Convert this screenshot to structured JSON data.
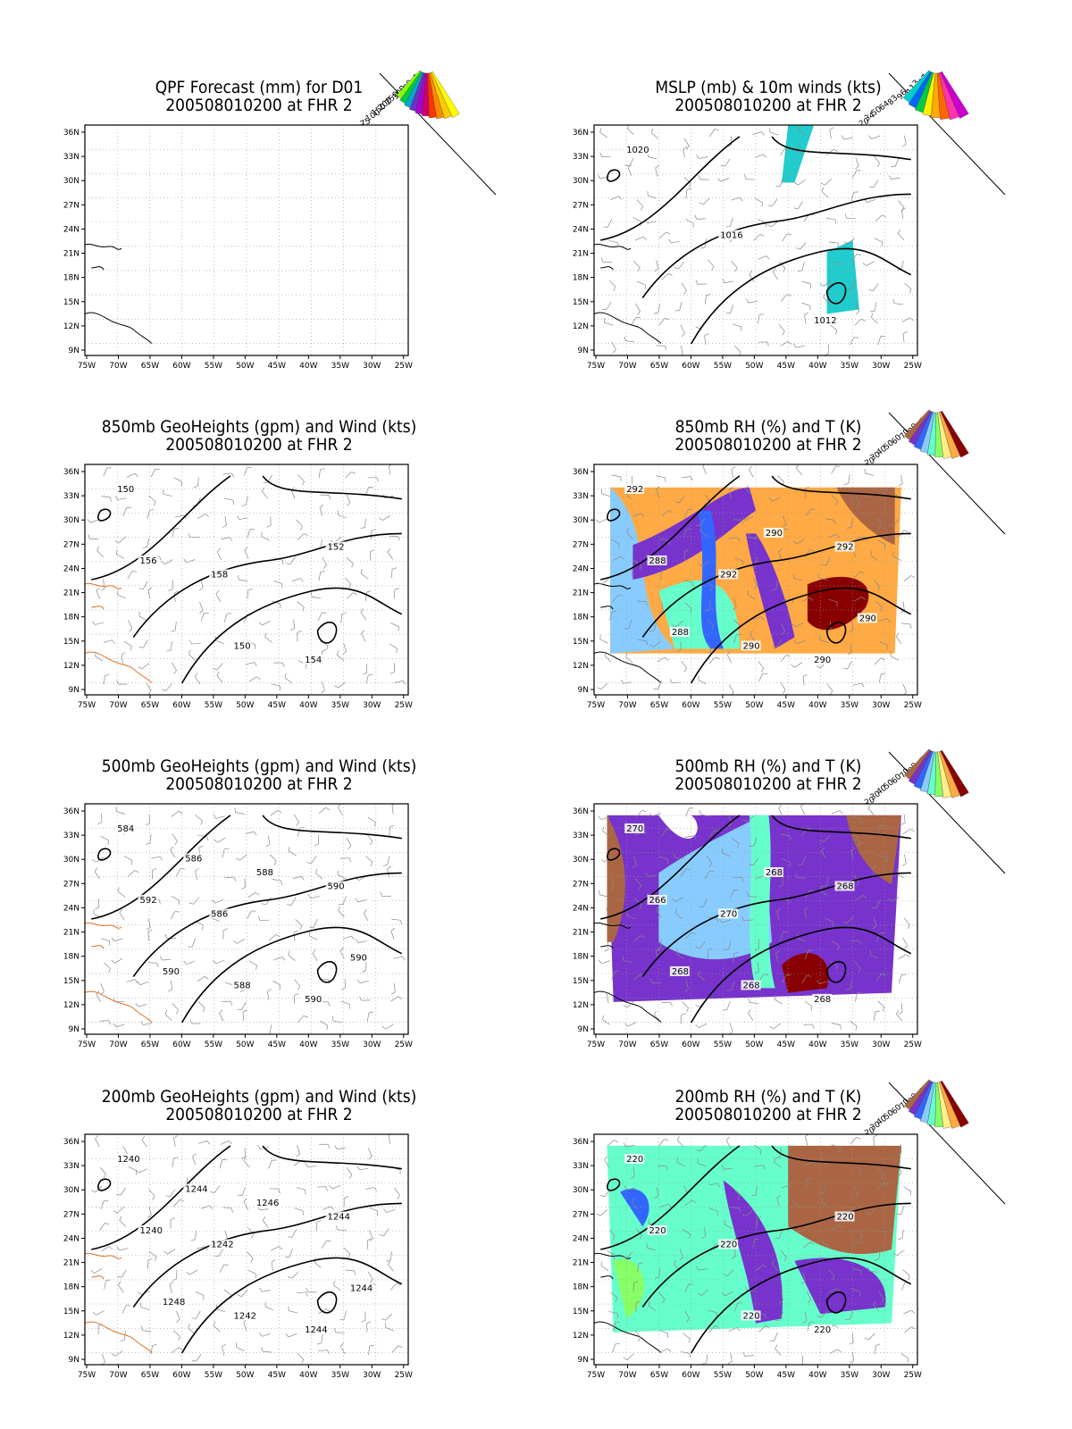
{
  "figure": {
    "x_ticks": [
      "75W",
      "70W",
      "65W",
      "60W",
      "55W",
      "50W",
      "45W",
      "40W",
      "35W",
      "30W",
      "25W"
    ],
    "y_ticks": [
      "36N",
      "33N",
      "30N",
      "27N",
      "24N",
      "21N",
      "18N",
      "15N",
      "12N",
      "9N"
    ]
  },
  "panels": [
    {
      "id": "qpf",
      "title": "QPF Forecast (mm) for D01",
      "subtitle": "200508010200 at FHR 2",
      "field": "none",
      "legend": {
        "labels": [
          "500",
          "400",
          "300",
          "250",
          "200",
          "150",
          "100",
          "75",
          "50",
          "25"
        ],
        "colors": [
          "#ffff00",
          "#ffcc00",
          "#ff8800",
          "#ff3300",
          "#cc0066",
          "#aa00cc",
          "#6633cc",
          "#00aacc",
          "#00cc44",
          "#88ff00"
        ]
      },
      "contour_labels": []
    },
    {
      "id": "mslp",
      "title": "MSLP (mb) & 10m winds (kts)",
      "subtitle": "200508010200 at FHR 2",
      "field": "mslp",
      "legend": {
        "labels": [
          "157",
          "113",
          "96",
          "83",
          "64",
          "50",
          "34",
          "20"
        ],
        "colors": [
          "#cc00cc",
          "#ff33aa",
          "#ff6600",
          "#ffaa00",
          "#ffee00",
          "#00cc44",
          "#0066ff",
          "#00cccc"
        ]
      },
      "contour_labels": [
        "1020",
        "1016",
        "1012"
      ]
    },
    {
      "id": "gh850",
      "title": "850mb GeoHeights (gpm) and Wind (kts)",
      "subtitle": "200508010200 at FHR 2",
      "field": "gh850",
      "legend": null,
      "contour_labels": [
        "150",
        "158",
        "154",
        "156",
        "150",
        "152"
      ]
    },
    {
      "id": "rh850",
      "title": "850mb RH (%) and T (K)",
      "subtitle": "200508010200 at FHR 2",
      "field": "rh850",
      "legend": {
        "labels": [
          "90",
          "80",
          "70",
          "60",
          "50",
          "40",
          "30",
          "20",
          "10"
        ],
        "colors": [
          "#880000",
          "#ffaa44",
          "#ffee88",
          "#88ff66",
          "#66ffcc",
          "#88ccff",
          "#3366ff",
          "#7733cc",
          "#aa6644"
        ]
      },
      "contour_labels": [
        "292",
        "292",
        "290",
        "288",
        "290",
        "292",
        "288",
        "290",
        "290"
      ]
    },
    {
      "id": "gh500",
      "title": "500mb GeoHeights (gpm) and Wind (kts)",
      "subtitle": "200508010200 at FHR 2",
      "field": "gh500",
      "legend": null,
      "contour_labels": [
        "584",
        "586",
        "590",
        "592",
        "588",
        "590",
        "590",
        "588",
        "590",
        "586"
      ]
    },
    {
      "id": "rh500",
      "title": "500mb RH (%) and T (K)",
      "subtitle": "200508010200 at FHR 2",
      "field": "rh500",
      "legend": {
        "labels": [
          "90",
          "80",
          "70",
          "60",
          "50",
          "40",
          "30",
          "20",
          "10"
        ],
        "colors": [
          "#880000",
          "#ffaa44",
          "#ffee88",
          "#88ff66",
          "#66ffcc",
          "#88ccff",
          "#3366ff",
          "#7733cc",
          "#aa6644"
        ]
      },
      "contour_labels": [
        "270",
        "270",
        "268",
        "266",
        "268",
        "268",
        "268",
        "268"
      ]
    },
    {
      "id": "gh200",
      "title": "200mb GeoHeights (gpm) and Wind (kts)",
      "subtitle": "200508010200 at FHR 2",
      "field": "gh200",
      "legend": null,
      "contour_labels": [
        "1240",
        "1242",
        "1244",
        "1240",
        "1242",
        "1244",
        "1248",
        "1246",
        "1244",
        "1244"
      ]
    },
    {
      "id": "rh200",
      "title": "200mb RH (%) and T (K)",
      "subtitle": "200508010200 at FHR 2",
      "field": "rh200",
      "legend": {
        "labels": [
          "90",
          "80",
          "70",
          "60",
          "50",
          "40",
          "30",
          "20",
          "10"
        ],
        "colors": [
          "#880000",
          "#ffaa44",
          "#ffee88",
          "#88ff66",
          "#66ffcc",
          "#88ccff",
          "#3366ff",
          "#7733cc",
          "#aa6644"
        ]
      },
      "contour_labels": [
        "220",
        "220",
        "220",
        "220",
        "220",
        "220"
      ]
    }
  ]
}
